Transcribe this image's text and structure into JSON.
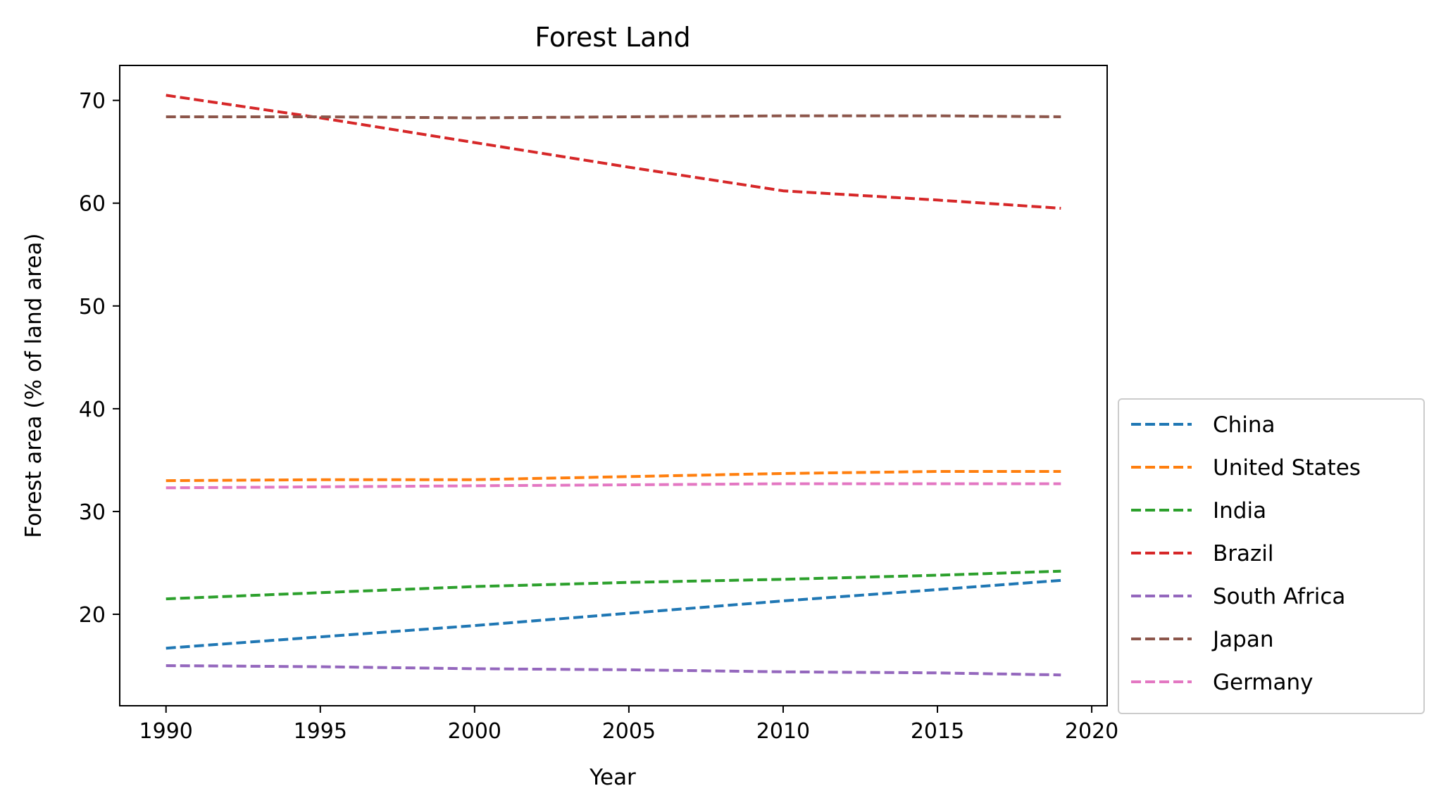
{
  "chart_data": {
    "type": "line",
    "title": "Forest Land",
    "xlabel": "Year",
    "ylabel": "Forest area (% of land area)",
    "xlim": [
      1988.5,
      2020.5
    ],
    "ylim": [
      11.1,
      73.4
    ],
    "xticks": [
      1990,
      1995,
      2000,
      2005,
      2010,
      2015,
      2020
    ],
    "yticks": [
      20,
      30,
      40,
      50,
      60,
      70
    ],
    "grid": false,
    "legend_position": "lower-right-outside",
    "line_style": "dashed",
    "x": [
      1990,
      1995,
      2000,
      2005,
      2010,
      2015,
      2019
    ],
    "series": [
      {
        "name": "China",
        "color": "#1f77b4",
        "values": [
          16.7,
          17.8,
          18.9,
          20.1,
          21.3,
          22.4,
          23.3
        ]
      },
      {
        "name": "United States",
        "color": "#ff7f0e",
        "values": [
          33.0,
          33.1,
          33.1,
          33.4,
          33.7,
          33.9,
          33.9
        ]
      },
      {
        "name": "India",
        "color": "#2ca02c",
        "values": [
          21.5,
          22.1,
          22.7,
          23.1,
          23.4,
          23.8,
          24.2
        ]
      },
      {
        "name": "Brazil",
        "color": "#d62728",
        "values": [
          70.5,
          68.3,
          65.9,
          63.5,
          61.2,
          60.3,
          59.5
        ]
      },
      {
        "name": "South Africa",
        "color": "#9467bd",
        "values": [
          15.0,
          14.9,
          14.7,
          14.6,
          14.4,
          14.3,
          14.1
        ]
      },
      {
        "name": "Japan",
        "color": "#8c564b",
        "values": [
          68.4,
          68.4,
          68.3,
          68.4,
          68.5,
          68.5,
          68.4
        ]
      },
      {
        "name": "Germany",
        "color": "#e377c2",
        "values": [
          32.3,
          32.4,
          32.5,
          32.6,
          32.7,
          32.7,
          32.7
        ]
      }
    ]
  }
}
